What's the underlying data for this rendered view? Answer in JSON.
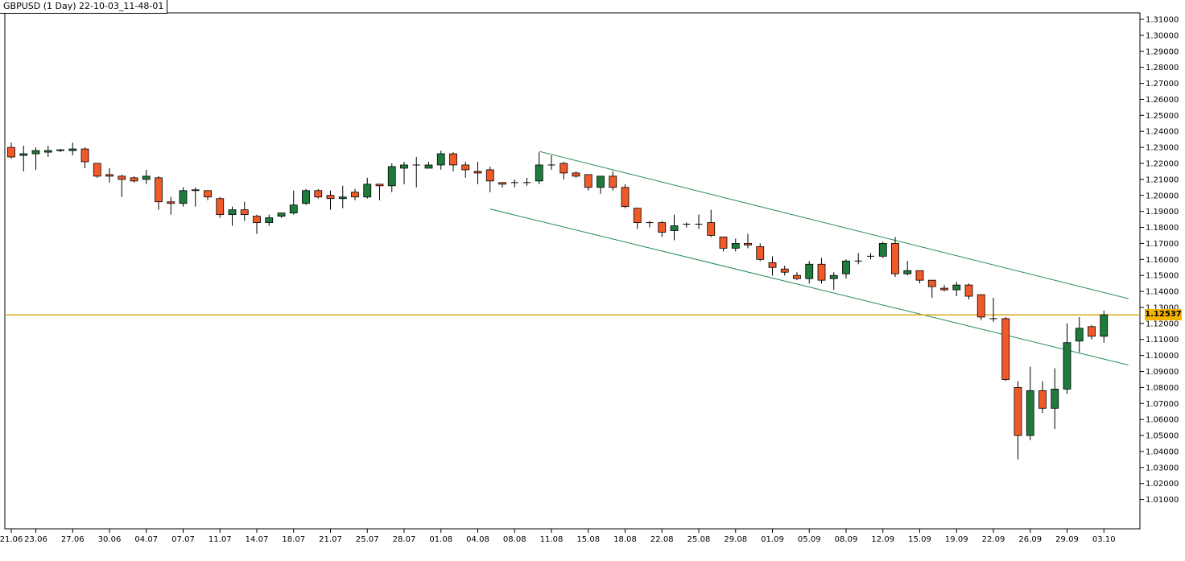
{
  "chart_data": {
    "type": "candlestick",
    "title": "GBPUSD (1 Day) 22-10-03_11-48-01",
    "ylim": [
      1.0,
      1.31
    ],
    "y_ticks": [
      "1.31000",
      "1.30000",
      "1.29000",
      "1.28000",
      "1.27000",
      "1.26000",
      "1.25000",
      "1.24000",
      "1.23000",
      "1.22000",
      "1.21000",
      "1.20000",
      "1.19000",
      "1.18000",
      "1.17000",
      "1.16000",
      "1.15000",
      "1.14000",
      "1.13000",
      "1.12000",
      "1.11000",
      "1.10000",
      "1.09000",
      "1.08000",
      "1.07000",
      "1.06000",
      "1.05000",
      "1.04000",
      "1.03000",
      "1.02000",
      "1.01000"
    ],
    "x_tick_labels": [
      "21.06",
      "23.06",
      "27.06",
      "30.06",
      "04.07",
      "07.07",
      "11.07",
      "14.07",
      "18.07",
      "21.07",
      "25.07",
      "28.07",
      "01.08",
      "04.08",
      "08.08",
      "11.08",
      "15.08",
      "18.08",
      "22.08",
      "25.08",
      "29.08",
      "01.09",
      "05.09",
      "08.09",
      "12.09",
      "15.09",
      "19.09",
      "22.09",
      "26.09",
      "29.09",
      "03.10"
    ],
    "x_tick_index": [
      0,
      2,
      5,
      8,
      11,
      14,
      17,
      20,
      23,
      26,
      29,
      32,
      35,
      38,
      41,
      44,
      47,
      50,
      53,
      56,
      59,
      62,
      65,
      68,
      71,
      74,
      77,
      80,
      83,
      86,
      89
    ],
    "current_price": "1.12537",
    "current_value": 1.12537,
    "colors": {
      "bull": "#1e7b3c",
      "bear": "#ef5a28",
      "wick": "#000000",
      "channel": "#1e8c4e",
      "price_line": "#d4a600",
      "price_tag": "#f5b400",
      "grid": "#000000"
    },
    "channel_lines": [
      {
        "start": [
          43,
          1.2275
        ],
        "end": [
          91,
          1.1355
        ]
      },
      {
        "start": [
          39,
          1.1915
        ],
        "end": [
          91,
          1.094
        ]
      }
    ],
    "candles": [
      {
        "o": 1.23,
        "h": 1.233,
        "l": 1.223,
        "c": 1.224
      },
      {
        "o": 1.225,
        "h": 1.231,
        "l": 1.215,
        "c": 1.226
      },
      {
        "o": 1.226,
        "h": 1.23,
        "l": 1.216,
        "c": 1.228
      },
      {
        "o": 1.227,
        "h": 1.231,
        "l": 1.224,
        "c": 1.228
      },
      {
        "o": 1.228,
        "h": 1.229,
        "l": 1.227,
        "c": 1.2285
      },
      {
        "o": 1.228,
        "h": 1.233,
        "l": 1.225,
        "c": 1.229
      },
      {
        "o": 1.229,
        "h": 1.23,
        "l": 1.217,
        "c": 1.221
      },
      {
        "o": 1.22,
        "h": 1.22,
        "l": 1.211,
        "c": 1.212
      },
      {
        "o": 1.213,
        "h": 1.217,
        "l": 1.208,
        "c": 1.212
      },
      {
        "o": 1.212,
        "h": 1.213,
        "l": 1.199,
        "c": 1.21
      },
      {
        "o": 1.211,
        "h": 1.212,
        "l": 1.208,
        "c": 1.209
      },
      {
        "o": 1.21,
        "h": 1.216,
        "l": 1.207,
        "c": 1.212
      },
      {
        "o": 1.211,
        "h": 1.212,
        "l": 1.191,
        "c": 1.196
      },
      {
        "o": 1.196,
        "h": 1.199,
        "l": 1.188,
        "c": 1.195
      },
      {
        "o": 1.195,
        "h": 1.205,
        "l": 1.193,
        "c": 1.203
      },
      {
        "o": 1.203,
        "h": 1.205,
        "l": 1.193,
        "c": 1.2035
      },
      {
        "o": 1.203,
        "h": 1.203,
        "l": 1.197,
        "c": 1.199
      },
      {
        "o": 1.198,
        "h": 1.199,
        "l": 1.186,
        "c": 1.188
      },
      {
        "o": 1.188,
        "h": 1.193,
        "l": 1.181,
        "c": 1.191
      },
      {
        "o": 1.191,
        "h": 1.196,
        "l": 1.184,
        "c": 1.188
      },
      {
        "o": 1.187,
        "h": 1.188,
        "l": 1.176,
        "c": 1.183
      },
      {
        "o": 1.183,
        "h": 1.188,
        "l": 1.181,
        "c": 1.186
      },
      {
        "o": 1.187,
        "h": 1.189,
        "l": 1.186,
        "c": 1.189
      },
      {
        "o": 1.189,
        "h": 1.203,
        "l": 1.188,
        "c": 1.194
      },
      {
        "o": 1.195,
        "h": 1.204,
        "l": 1.194,
        "c": 1.203
      },
      {
        "o": 1.203,
        "h": 1.204,
        "l": 1.198,
        "c": 1.199
      },
      {
        "o": 1.2,
        "h": 1.203,
        "l": 1.191,
        "c": 1.198
      },
      {
        "o": 1.198,
        "h": 1.206,
        "l": 1.192,
        "c": 1.199
      },
      {
        "o": 1.202,
        "h": 1.204,
        "l": 1.197,
        "c": 1.199
      },
      {
        "o": 1.199,
        "h": 1.211,
        "l": 1.198,
        "c": 1.207
      },
      {
        "o": 1.207,
        "h": 1.207,
        "l": 1.197,
        "c": 1.206
      },
      {
        "o": 1.206,
        "h": 1.22,
        "l": 1.202,
        "c": 1.218
      },
      {
        "o": 1.217,
        "h": 1.221,
        "l": 1.207,
        "c": 1.219
      },
      {
        "o": 1.219,
        "h": 1.224,
        "l": 1.205,
        "c": 1.219
      },
      {
        "o": 1.217,
        "h": 1.221,
        "l": 1.217,
        "c": 1.219
      },
      {
        "o": 1.219,
        "h": 1.228,
        "l": 1.216,
        "c": 1.226
      },
      {
        "o": 1.226,
        "h": 1.227,
        "l": 1.215,
        "c": 1.219
      },
      {
        "o": 1.219,
        "h": 1.221,
        "l": 1.211,
        "c": 1.216
      },
      {
        "o": 1.215,
        "h": 1.221,
        "l": 1.207,
        "c": 1.214
      },
      {
        "o": 1.216,
        "h": 1.218,
        "l": 1.202,
        "c": 1.209
      },
      {
        "o": 1.208,
        "h": 1.208,
        "l": 1.205,
        "c": 1.207
      },
      {
        "o": 1.208,
        "h": 1.21,
        "l": 1.205,
        "c": 1.208
      },
      {
        "o": 1.208,
        "h": 1.211,
        "l": 1.206,
        "c": 1.208
      },
      {
        "o": 1.209,
        "h": 1.227,
        "l": 1.207,
        "c": 1.219
      },
      {
        "o": 1.219,
        "h": 1.225,
        "l": 1.216,
        "c": 1.219
      },
      {
        "o": 1.22,
        "h": 1.221,
        "l": 1.21,
        "c": 1.214
      },
      {
        "o": 1.214,
        "h": 1.215,
        "l": 1.211,
        "c": 1.212
      },
      {
        "o": 1.213,
        "h": 1.213,
        "l": 1.203,
        "c": 1.205
      },
      {
        "o": 1.205,
        "h": 1.212,
        "l": 1.201,
        "c": 1.212
      },
      {
        "o": 1.212,
        "h": 1.215,
        "l": 1.203,
        "c": 1.205
      },
      {
        "o": 1.205,
        "h": 1.207,
        "l": 1.192,
        "c": 1.193
      },
      {
        "o": 1.192,
        "h": 1.192,
        "l": 1.179,
        "c": 1.183
      },
      {
        "o": 1.183,
        "h": 1.184,
        "l": 1.18,
        "c": 1.183
      },
      {
        "o": 1.183,
        "h": 1.184,
        "l": 1.174,
        "c": 1.177
      },
      {
        "o": 1.178,
        "h": 1.188,
        "l": 1.172,
        "c": 1.181
      },
      {
        "o": 1.182,
        "h": 1.183,
        "l": 1.18,
        "c": 1.182
      },
      {
        "o": 1.182,
        "h": 1.188,
        "l": 1.179,
        "c": 1.182
      },
      {
        "o": 1.183,
        "h": 1.191,
        "l": 1.174,
        "c": 1.175
      },
      {
        "o": 1.174,
        "h": 1.174,
        "l": 1.165,
        "c": 1.167
      },
      {
        "o": 1.167,
        "h": 1.173,
        "l": 1.165,
        "c": 1.17
      },
      {
        "o": 1.17,
        "h": 1.176,
        "l": 1.167,
        "c": 1.169
      },
      {
        "o": 1.168,
        "h": 1.17,
        "l": 1.159,
        "c": 1.16
      },
      {
        "o": 1.158,
        "h": 1.162,
        "l": 1.15,
        "c": 1.155
      },
      {
        "o": 1.154,
        "h": 1.156,
        "l": 1.15,
        "c": 1.152
      },
      {
        "o": 1.15,
        "h": 1.152,
        "l": 1.147,
        "c": 1.148
      },
      {
        "o": 1.148,
        "h": 1.159,
        "l": 1.145,
        "c": 1.157
      },
      {
        "o": 1.157,
        "h": 1.161,
        "l": 1.145,
        "c": 1.147
      },
      {
        "o": 1.148,
        "h": 1.152,
        "l": 1.141,
        "c": 1.15
      },
      {
        "o": 1.151,
        "h": 1.16,
        "l": 1.148,
        "c": 1.159
      },
      {
        "o": 1.159,
        "h": 1.164,
        "l": 1.157,
        "c": 1.159
      },
      {
        "o": 1.162,
        "h": 1.164,
        "l": 1.16,
        "c": 1.162
      },
      {
        "o": 1.162,
        "h": 1.171,
        "l": 1.161,
        "c": 1.17
      },
      {
        "o": 1.17,
        "h": 1.174,
        "l": 1.149,
        "c": 1.151
      },
      {
        "o": 1.151,
        "h": 1.159,
        "l": 1.15,
        "c": 1.153
      },
      {
        "o": 1.153,
        "h": 1.153,
        "l": 1.145,
        "c": 1.147
      },
      {
        "o": 1.147,
        "h": 1.147,
        "l": 1.136,
        "c": 1.143
      },
      {
        "o": 1.142,
        "h": 1.144,
        "l": 1.14,
        "c": 1.141
      },
      {
        "o": 1.141,
        "h": 1.146,
        "l": 1.137,
        "c": 1.144
      },
      {
        "o": 1.144,
        "h": 1.145,
        "l": 1.135,
        "c": 1.137
      },
      {
        "o": 1.138,
        "h": 1.138,
        "l": 1.122,
        "c": 1.124
      },
      {
        "o": 1.123,
        "h": 1.136,
        "l": 1.121,
        "c": 1.123
      },
      {
        "o": 1.123,
        "h": 1.124,
        "l": 1.084,
        "c": 1.085
      },
      {
        "o": 1.08,
        "h": 1.084,
        "l": 1.035,
        "c": 1.05
      },
      {
        "o": 1.05,
        "h": 1.093,
        "l": 1.047,
        "c": 1.078
      },
      {
        "o": 1.078,
        "h": 1.084,
        "l": 1.064,
        "c": 1.067
      },
      {
        "o": 1.067,
        "h": 1.092,
        "l": 1.054,
        "c": 1.079
      },
      {
        "o": 1.079,
        "h": 1.12,
        "l": 1.076,
        "c": 1.108
      },
      {
        "o": 1.109,
        "h": 1.124,
        "l": 1.102,
        "c": 1.117
      },
      {
        "o": 1.118,
        "h": 1.119,
        "l": 1.11,
        "c": 1.112
      },
      {
        "o": 1.112,
        "h": 1.128,
        "l": 1.108,
        "c": 1.1254
      }
    ]
  }
}
